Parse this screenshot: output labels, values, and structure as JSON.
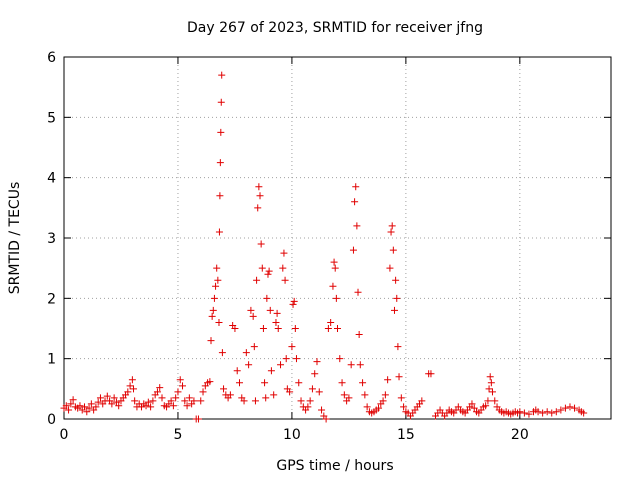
{
  "chart_data": {
    "type": "scatter",
    "title": "Day 267 of 2023, SRMTID for receiver jfng",
    "xlabel": "GPS time / hours",
    "ylabel": "SRMTID / TECUs",
    "xlim": [
      0,
      24
    ],
    "ylim": [
      0,
      6
    ],
    "xticks": [
      0,
      5,
      10,
      15,
      20
    ],
    "yticks": [
      0,
      1,
      2,
      3,
      4,
      5,
      6
    ],
    "xtick_labels": [
      "0",
      "5",
      "10",
      "15",
      "20"
    ],
    "ytick_labels": [
      "0",
      "1",
      "2",
      "3",
      "4",
      "5",
      "6"
    ],
    "grid": true,
    "marker": "+",
    "color": "#e00000",
    "series": [
      {
        "name": "SRMTID",
        "points": [
          [
            0.0,
            0.18
          ],
          [
            0.1,
            0.22
          ],
          [
            0.2,
            0.15
          ],
          [
            0.3,
            0.25
          ],
          [
            0.4,
            0.32
          ],
          [
            0.5,
            0.2
          ],
          [
            0.6,
            0.18
          ],
          [
            0.7,
            0.22
          ],
          [
            0.8,
            0.15
          ],
          [
            0.9,
            0.2
          ],
          [
            1.0,
            0.12
          ],
          [
            1.1,
            0.18
          ],
          [
            1.2,
            0.25
          ],
          [
            1.3,
            0.15
          ],
          [
            1.4,
            0.2
          ],
          [
            1.5,
            0.28
          ],
          [
            1.6,
            0.35
          ],
          [
            1.7,
            0.25
          ],
          [
            1.8,
            0.3
          ],
          [
            1.9,
            0.38
          ],
          [
            2.0,
            0.3
          ],
          [
            2.1,
            0.25
          ],
          [
            2.2,
            0.35
          ],
          [
            2.3,
            0.28
          ],
          [
            2.4,
            0.22
          ],
          [
            2.5,
            0.3
          ],
          [
            2.6,
            0.35
          ],
          [
            2.7,
            0.4
          ],
          [
            2.8,
            0.45
          ],
          [
            2.9,
            0.55
          ],
          [
            3.0,
            0.65
          ],
          [
            3.05,
            0.5
          ],
          [
            3.1,
            0.3
          ],
          [
            3.2,
            0.2
          ],
          [
            3.3,
            0.25
          ],
          [
            3.4,
            0.2
          ],
          [
            3.5,
            0.25
          ],
          [
            3.6,
            0.22
          ],
          [
            3.7,
            0.28
          ],
          [
            3.8,
            0.2
          ],
          [
            3.9,
            0.3
          ],
          [
            4.0,
            0.4
          ],
          [
            4.1,
            0.45
          ],
          [
            4.2,
            0.52
          ],
          [
            4.3,
            0.35
          ],
          [
            4.4,
            0.22
          ],
          [
            4.5,
            0.2
          ],
          [
            4.6,
            0.25
          ],
          [
            4.7,
            0.3
          ],
          [
            4.8,
            0.22
          ],
          [
            4.9,
            0.35
          ],
          [
            5.0,
            0.45
          ],
          [
            5.1,
            0.65
          ],
          [
            5.2,
            0.55
          ],
          [
            5.3,
            0.3
          ],
          [
            5.4,
            0.22
          ],
          [
            5.5,
            0.35
          ],
          [
            5.6,
            0.25
          ],
          [
            5.7,
            0.3
          ],
          [
            5.8,
            0.0
          ],
          [
            5.9,
            0.0
          ],
          [
            6.0,
            0.3
          ],
          [
            6.1,
            0.45
          ],
          [
            6.2,
            0.55
          ],
          [
            6.3,
            0.6
          ],
          [
            6.4,
            0.62
          ],
          [
            6.45,
            1.3
          ],
          [
            6.5,
            1.7
          ],
          [
            6.55,
            1.8
          ],
          [
            6.6,
            2.0
          ],
          [
            6.65,
            2.2
          ],
          [
            6.7,
            2.5
          ],
          [
            6.75,
            2.3
          ],
          [
            6.8,
            1.6
          ],
          [
            6.82,
            3.1
          ],
          [
            6.84,
            3.7
          ],
          [
            6.86,
            4.25
          ],
          [
            6.88,
            4.75
          ],
          [
            6.9,
            5.25
          ],
          [
            6.92,
            5.7
          ],
          [
            6.95,
            1.1
          ],
          [
            7.0,
            0.5
          ],
          [
            7.1,
            0.4
          ],
          [
            7.2,
            0.35
          ],
          [
            7.3,
            0.4
          ],
          [
            7.4,
            1.55
          ],
          [
            7.5,
            1.5
          ],
          [
            7.6,
            0.8
          ],
          [
            7.7,
            0.6
          ],
          [
            7.8,
            0.35
          ],
          [
            7.9,
            0.3
          ],
          [
            8.0,
            1.1
          ],
          [
            8.1,
            0.9
          ],
          [
            8.2,
            1.8
          ],
          [
            8.3,
            1.7
          ],
          [
            8.35,
            1.2
          ],
          [
            8.4,
            0.3
          ],
          [
            8.45,
            2.3
          ],
          [
            8.5,
            3.5
          ],
          [
            8.55,
            3.85
          ],
          [
            8.6,
            3.7
          ],
          [
            8.65,
            2.9
          ],
          [
            8.7,
            2.5
          ],
          [
            8.75,
            1.5
          ],
          [
            8.8,
            0.6
          ],
          [
            8.85,
            0.35
          ],
          [
            8.9,
            2.0
          ],
          [
            8.95,
            2.4
          ],
          [
            9.0,
            2.45
          ],
          [
            9.05,
            1.8
          ],
          [
            9.1,
            0.8
          ],
          [
            9.2,
            0.4
          ],
          [
            9.3,
            1.6
          ],
          [
            9.35,
            1.75
          ],
          [
            9.4,
            1.5
          ],
          [
            9.5,
            0.9
          ],
          [
            9.6,
            2.5
          ],
          [
            9.65,
            2.75
          ],
          [
            9.7,
            2.3
          ],
          [
            9.75,
            1.0
          ],
          [
            9.8,
            0.5
          ],
          [
            9.9,
            0.45
          ],
          [
            10.0,
            1.2
          ],
          [
            10.05,
            1.9
          ],
          [
            10.1,
            1.95
          ],
          [
            10.15,
            1.5
          ],
          [
            10.2,
            1.0
          ],
          [
            10.3,
            0.6
          ],
          [
            10.4,
            0.3
          ],
          [
            10.5,
            0.2
          ],
          [
            10.6,
            0.15
          ],
          [
            10.7,
            0.2
          ],
          [
            10.8,
            0.3
          ],
          [
            10.9,
            0.5
          ],
          [
            11.0,
            0.75
          ],
          [
            11.1,
            0.95
          ],
          [
            11.2,
            0.45
          ],
          [
            11.3,
            0.15
          ],
          [
            11.4,
            0.05
          ],
          [
            11.5,
            0.0
          ],
          [
            11.6,
            1.5
          ],
          [
            11.7,
            1.6
          ],
          [
            11.8,
            2.2
          ],
          [
            11.85,
            2.6
          ],
          [
            11.9,
            2.5
          ],
          [
            11.95,
            2.0
          ],
          [
            12.0,
            1.5
          ],
          [
            12.1,
            1.0
          ],
          [
            12.2,
            0.6
          ],
          [
            12.3,
            0.4
          ],
          [
            12.4,
            0.3
          ],
          [
            12.5,
            0.35
          ],
          [
            12.6,
            0.9
          ],
          [
            12.7,
            2.8
          ],
          [
            12.75,
            3.6
          ],
          [
            12.8,
            3.85
          ],
          [
            12.85,
            3.2
          ],
          [
            12.9,
            2.1
          ],
          [
            12.95,
            1.4
          ],
          [
            13.0,
            0.9
          ],
          [
            13.1,
            0.6
          ],
          [
            13.2,
            0.4
          ],
          [
            13.3,
            0.2
          ],
          [
            13.4,
            0.12
          ],
          [
            13.5,
            0.1
          ],
          [
            13.6,
            0.12
          ],
          [
            13.7,
            0.15
          ],
          [
            13.8,
            0.18
          ],
          [
            13.9,
            0.25
          ],
          [
            14.0,
            0.3
          ],
          [
            14.1,
            0.4
          ],
          [
            14.2,
            0.65
          ],
          [
            14.3,
            2.5
          ],
          [
            14.35,
            3.1
          ],
          [
            14.4,
            3.2
          ],
          [
            14.45,
            2.8
          ],
          [
            14.5,
            1.8
          ],
          [
            14.55,
            2.3
          ],
          [
            14.6,
            2.0
          ],
          [
            14.65,
            1.2
          ],
          [
            14.7,
            0.7
          ],
          [
            14.8,
            0.35
          ],
          [
            14.9,
            0.2
          ],
          [
            15.0,
            0.12
          ],
          [
            15.1,
            0.1
          ],
          [
            15.2,
            0.05
          ],
          [
            15.3,
            0.1
          ],
          [
            15.4,
            0.15
          ],
          [
            15.5,
            0.2
          ],
          [
            15.6,
            0.25
          ],
          [
            15.7,
            0.3
          ],
          [
            16.0,
            0.75
          ],
          [
            16.1,
            0.75
          ],
          [
            16.3,
            0.05
          ],
          [
            16.4,
            0.1
          ],
          [
            16.5,
            0.15
          ],
          [
            16.6,
            0.1
          ],
          [
            16.7,
            0.05
          ],
          [
            16.8,
            0.1
          ],
          [
            16.9,
            0.15
          ],
          [
            17.0,
            0.12
          ],
          [
            17.1,
            0.1
          ],
          [
            17.2,
            0.15
          ],
          [
            17.3,
            0.2
          ],
          [
            17.4,
            0.15
          ],
          [
            17.5,
            0.12
          ],
          [
            17.6,
            0.1
          ],
          [
            17.7,
            0.15
          ],
          [
            17.8,
            0.2
          ],
          [
            17.9,
            0.25
          ],
          [
            18.0,
            0.18
          ],
          [
            18.1,
            0.12
          ],
          [
            18.2,
            0.1
          ],
          [
            18.3,
            0.15
          ],
          [
            18.4,
            0.2
          ],
          [
            18.5,
            0.22
          ],
          [
            18.6,
            0.3
          ],
          [
            18.65,
            0.5
          ],
          [
            18.7,
            0.7
          ],
          [
            18.75,
            0.6
          ],
          [
            18.8,
            0.45
          ],
          [
            18.9,
            0.3
          ],
          [
            19.0,
            0.2
          ],
          [
            19.1,
            0.15
          ],
          [
            19.2,
            0.12
          ],
          [
            19.3,
            0.1
          ],
          [
            19.4,
            0.12
          ],
          [
            19.5,
            0.1
          ],
          [
            19.6,
            0.08
          ],
          [
            19.7,
            0.1
          ],
          [
            19.8,
            0.12
          ],
          [
            19.9,
            0.1
          ],
          [
            20.0,
            0.12
          ],
          [
            20.2,
            0.1
          ],
          [
            20.4,
            0.08
          ],
          [
            20.6,
            0.12
          ],
          [
            20.7,
            0.15
          ],
          [
            20.8,
            0.12
          ],
          [
            21.0,
            0.1
          ],
          [
            21.2,
            0.12
          ],
          [
            21.4,
            0.1
          ],
          [
            21.6,
            0.12
          ],
          [
            21.8,
            0.15
          ],
          [
            22.0,
            0.18
          ],
          [
            22.2,
            0.2
          ],
          [
            22.4,
            0.18
          ],
          [
            22.6,
            0.15
          ],
          [
            22.7,
            0.12
          ],
          [
            22.8,
            0.1
          ]
        ]
      }
    ]
  }
}
